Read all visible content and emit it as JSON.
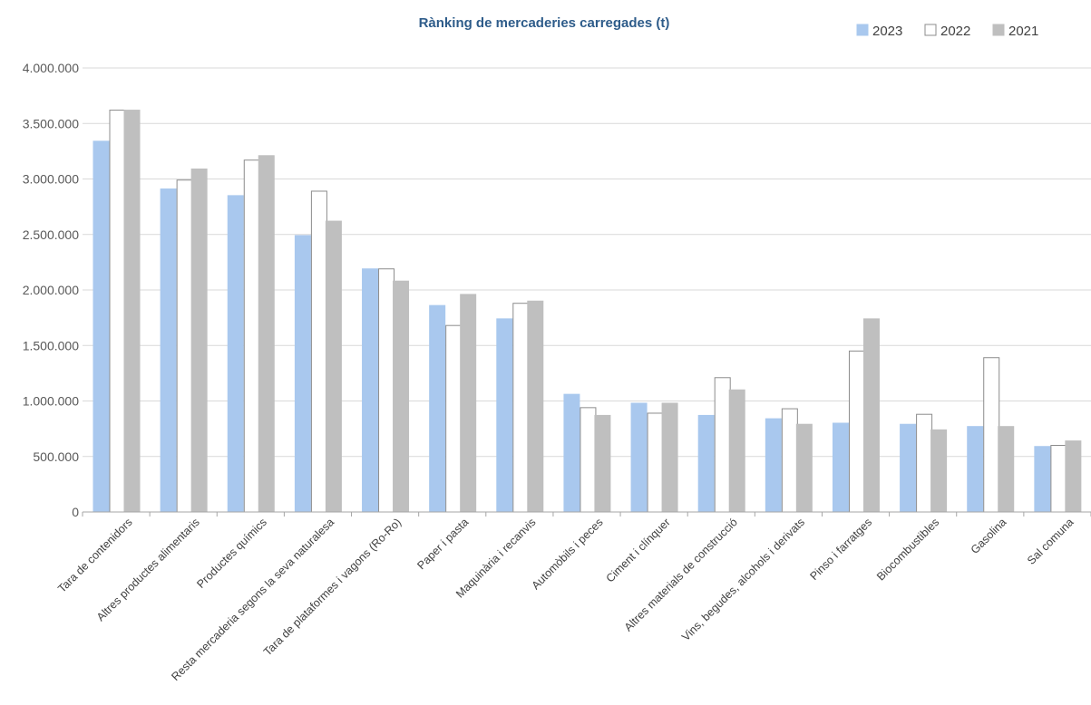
{
  "chart_data": {
    "type": "bar",
    "title": "Rànking de mercaderies carregades (t)",
    "xlabel": "",
    "ylabel": "",
    "ylim": [
      0,
      4000000
    ],
    "yticks": [
      0,
      500000,
      1000000,
      1500000,
      2000000,
      2500000,
      3000000,
      3500000,
      4000000
    ],
    "ytick_labels": [
      "0",
      "500.000",
      "1.000.000",
      "1.500.000",
      "2.000.000",
      "2.500.000",
      "3.000.000",
      "3.500.000",
      "4.000.000"
    ],
    "grid": true,
    "legend_position": "top-right",
    "categories": [
      "Tara de contenidors",
      "Altres productes alimentaris",
      "Productes químics",
      "Resta mercaderia segons la seva naturalesa",
      "Tara de plataformes i vagons (Ro-Ro)",
      "Paper i pasta",
      "Maquinària i recanvis",
      "Automòbils i peces",
      "Ciment i clínquer",
      "Altres materials de construcció",
      "Vins, begudes, alcohols i derivats",
      "Pinso i farratges",
      "Biocombustibles",
      "Gasolina",
      "Sal comuna"
    ],
    "series": [
      {
        "name": "2023",
        "color": "#a9c8ee",
        "stroke": "#a9c8ee",
        "values": [
          3340000,
          2910000,
          2850000,
          2490000,
          2190000,
          1860000,
          1740000,
          1060000,
          980000,
          870000,
          840000,
          800000,
          790000,
          770000,
          590000
        ]
      },
      {
        "name": "2022",
        "color": "#ffffff",
        "stroke": "#8c8c8c",
        "values": [
          3620000,
          2990000,
          3170000,
          2890000,
          2190000,
          1680000,
          1880000,
          940000,
          890000,
          1210000,
          930000,
          1450000,
          880000,
          1390000,
          600000
        ]
      },
      {
        "name": "2021",
        "color": "#bfbfbf",
        "stroke": "#bfbfbf",
        "values": [
          3620000,
          3090000,
          3210000,
          2620000,
          2080000,
          1960000,
          1900000,
          870000,
          980000,
          1100000,
          790000,
          1740000,
          740000,
          770000,
          640000
        ]
      }
    ]
  },
  "colors": {
    "title": "#2e5c8a",
    "grid": "#d9d9d9",
    "axis": "#a6a6a6"
  }
}
